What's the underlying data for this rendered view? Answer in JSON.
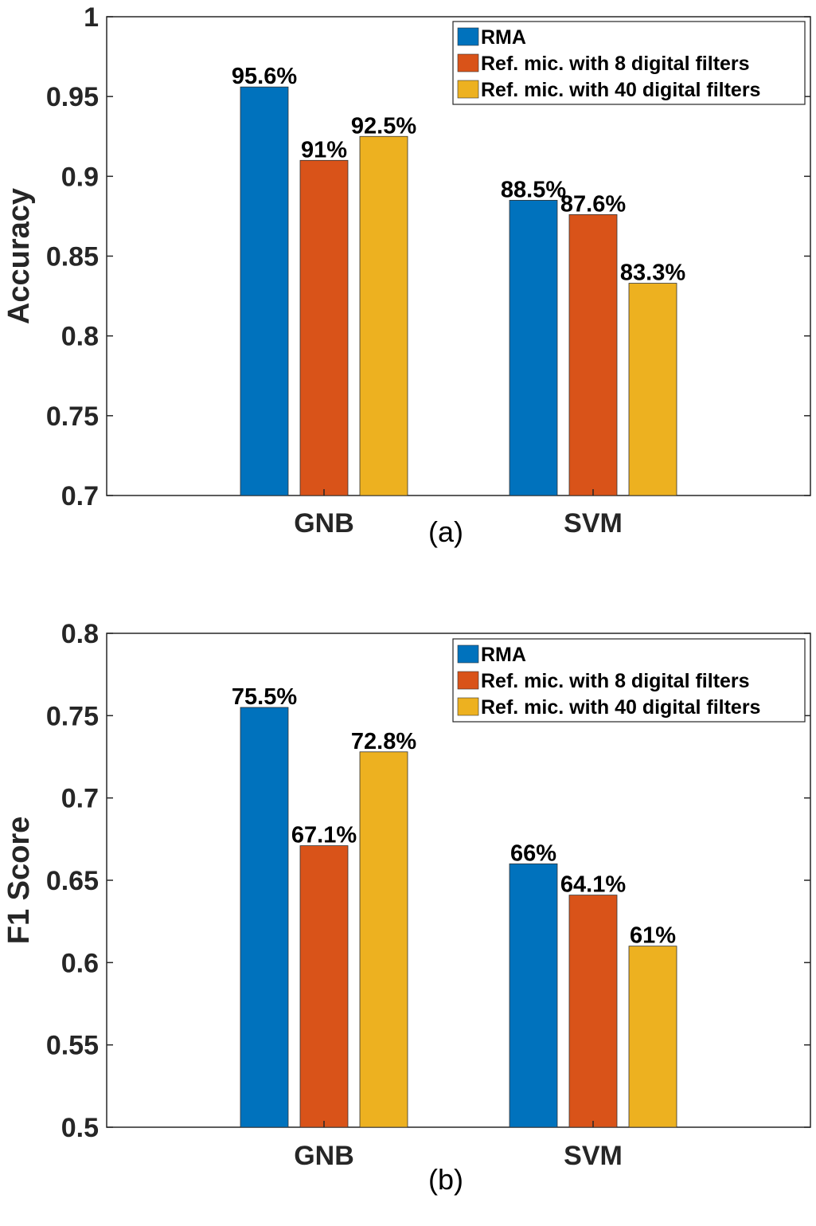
{
  "colors": {
    "series": [
      "#0072BD",
      "#D95319",
      "#EDB120"
    ],
    "axis": "#262626"
  },
  "chart_data": [
    {
      "type": "bar",
      "title": "",
      "xlabel": "",
      "ylabel": "Accuracy",
      "caption": "(a)",
      "categories": [
        "GNB",
        "SVM"
      ],
      "ylim": [
        0.7,
        1
      ],
      "yticks": [
        0.7,
        0.75,
        0.8,
        0.85,
        0.9,
        0.95,
        1
      ],
      "ytick_labels": [
        "0.7",
        "0.75",
        "0.8",
        "0.85",
        "0.9",
        "0.95",
        "1"
      ],
      "legend_position": "top-right",
      "grid": false,
      "series": [
        {
          "name": "RMA",
          "values": [
            0.956,
            0.885
          ],
          "labels": [
            "95.6%",
            "88.5%"
          ]
        },
        {
          "name": "Ref. mic. with 8 digital filters",
          "values": [
            0.91,
            0.876
          ],
          "labels": [
            "91%",
            "87.6%"
          ]
        },
        {
          "name": "Ref. mic. with 40 digital filters",
          "values": [
            0.925,
            0.833
          ],
          "labels": [
            "92.5%",
            "83.3%"
          ]
        }
      ]
    },
    {
      "type": "bar",
      "title": "",
      "xlabel": "",
      "ylabel": "F1 Score",
      "caption": "(b)",
      "categories": [
        "GNB",
        "SVM"
      ],
      "ylim": [
        0.5,
        0.8
      ],
      "yticks": [
        0.5,
        0.55,
        0.6,
        0.65,
        0.7,
        0.75,
        0.8
      ],
      "ytick_labels": [
        "0.5",
        "0.55",
        "0.6",
        "0.65",
        "0.7",
        "0.75",
        "0.8"
      ],
      "legend_position": "top-right",
      "grid": false,
      "series": [
        {
          "name": "RMA",
          "values": [
            0.755,
            0.66
          ],
          "labels": [
            "75.5%",
            "66%"
          ]
        },
        {
          "name": "Ref. mic. with 8 digital filters",
          "values": [
            0.671,
            0.641
          ],
          "labels": [
            "67.1%",
            "64.1%"
          ]
        },
        {
          "name": "Ref. mic. with 40 digital filters",
          "values": [
            0.728,
            0.61
          ],
          "labels": [
            "72.8%",
            "61%"
          ]
        }
      ]
    }
  ]
}
